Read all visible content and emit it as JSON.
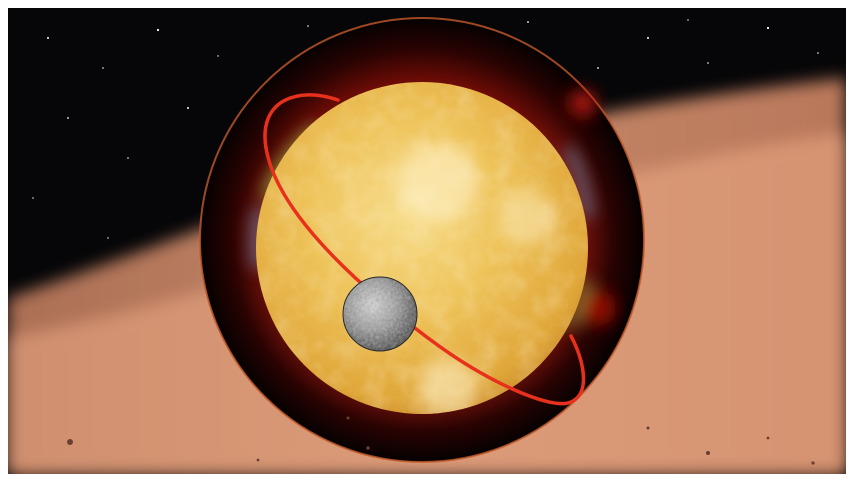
{
  "scene": {
    "background_color": "#060608",
    "dust_cloud_color": "#e8a07a",
    "star_core_color": "#e9b13e",
    "chromosphere_color": "#7a0d06",
    "orbit_color": "#e8311c",
    "planet_color": "#8c8c8c",
    "rim_glow_colors": [
      "#9be35a",
      "#6fb6e8"
    ]
  }
}
